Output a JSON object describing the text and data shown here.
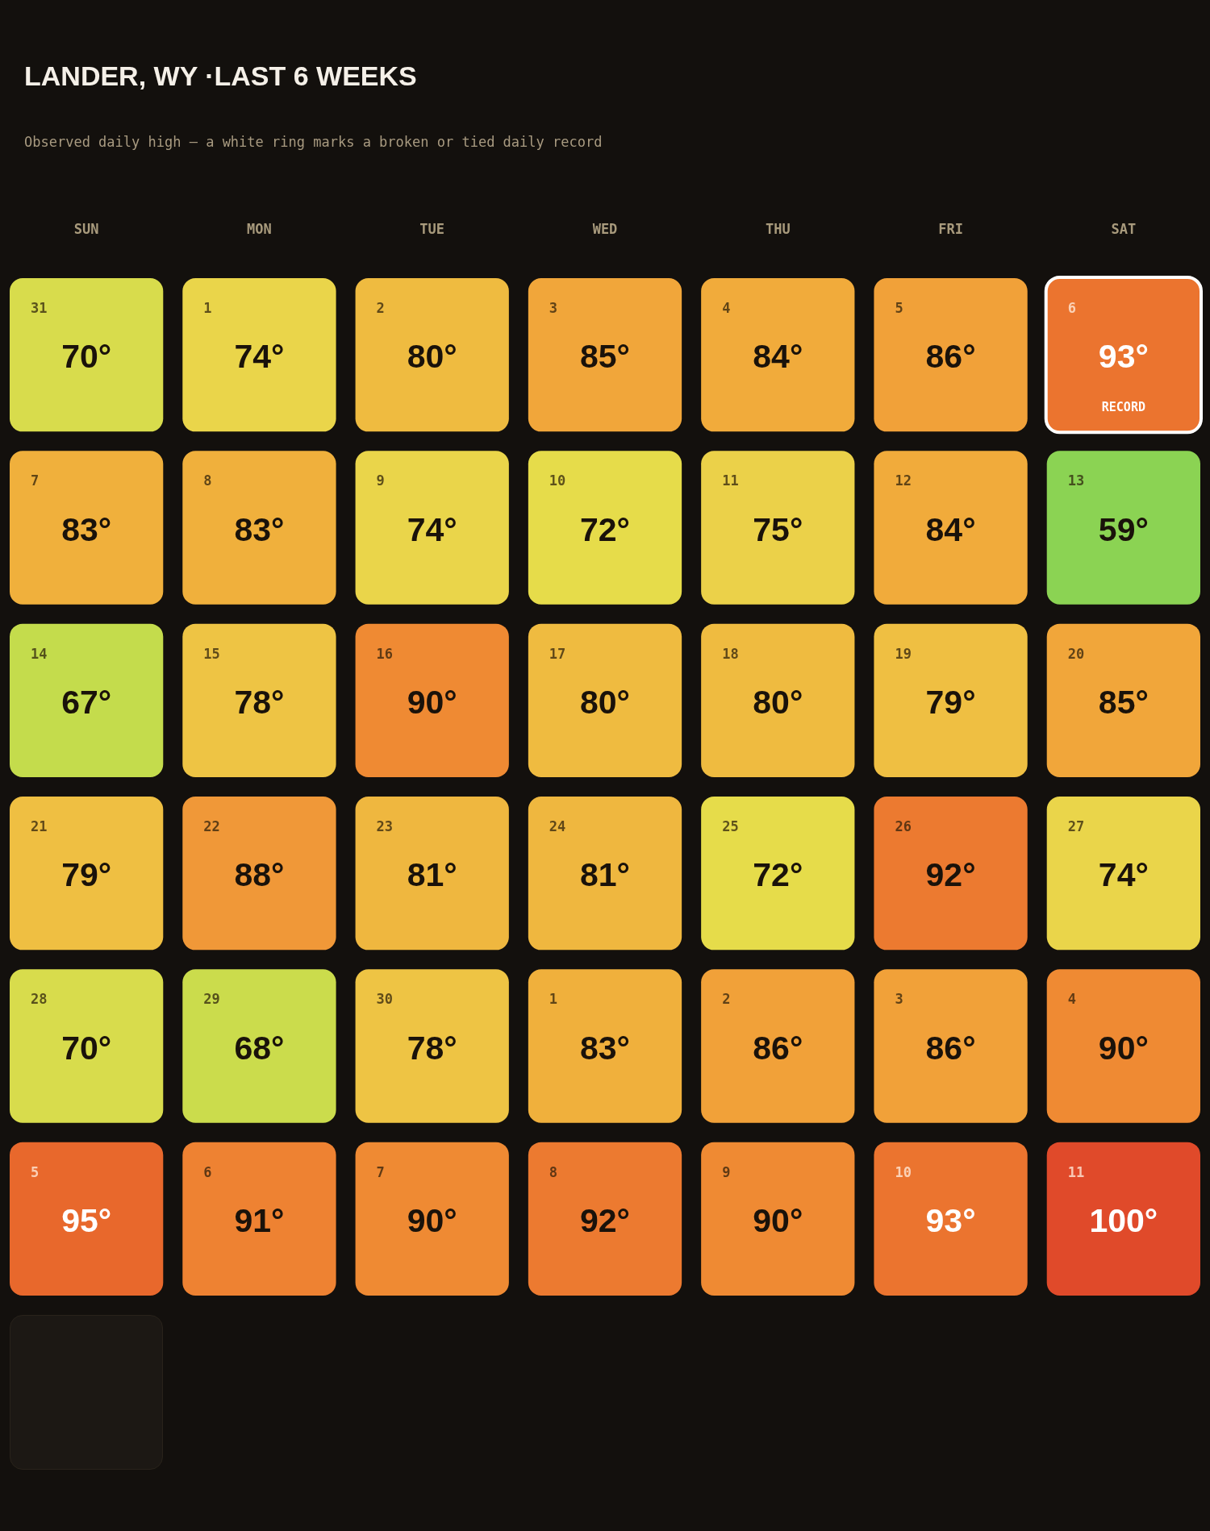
{
  "chart_data": {
    "type": "heatmap",
    "title": "LANDER, WY ·LAST 6 WEEKS",
    "subtitle": "Observed daily high — a white ring marks a broken or tied daily record",
    "categories": [
      "SUN",
      "MON",
      "TUE",
      "WED",
      "THU",
      "FRI",
      "SAT"
    ],
    "y_categories": [
      null,
      null,
      null,
      null,
      null,
      null
    ],
    "tick_labels": "x",
    "cells": [
      [
        70,
        74,
        80,
        85,
        84,
        86,
        93
      ],
      [
        83,
        83,
        74,
        72,
        75,
        84,
        59
      ],
      [
        67,
        78,
        90,
        80,
        80,
        79,
        85
      ],
      [
        79,
        88,
        81,
        81,
        72,
        92,
        74
      ],
      [
        70,
        68,
        78,
        83,
        86,
        86,
        90
      ],
      [
        95,
        91,
        90,
        92,
        90,
        93,
        100
      ]
    ],
    "cell_labels": [
      [
        "70°",
        "74°",
        "80°",
        "85°",
        "84°",
        "86°",
        "93°\nRECORD"
      ],
      [
        "83°",
        "83°",
        "74°",
        "72°",
        "75°",
        "84°",
        "59°"
      ],
      [
        "67°",
        "78°",
        "90°",
        "80°",
        "80°",
        "79°",
        "85°"
      ],
      [
        "79°",
        "88°",
        "81°",
        "81°",
        "72°",
        "92°",
        "74°"
      ],
      [
        "70°",
        "68°",
        "78°",
        "83°",
        "86°",
        "86°",
        "90°"
      ],
      [
        "95°",
        "91°",
        "90°",
        "92°",
        "90°",
        "93°",
        "100°"
      ]
    ],
    "annotations": [
      "31",
      "1",
      "2",
      "3",
      "4",
      "5",
      "6",
      "7",
      "8",
      "9",
      "10",
      "11",
      "12",
      "13",
      "14",
      "15",
      "16",
      "17",
      "18",
      "19",
      "20",
      "21",
      "22",
      "23",
      "24",
      "25",
      "26",
      "27",
      "28",
      "29",
      "30",
      "1",
      "2",
      "3",
      "4",
      "5",
      "6",
      "7",
      "8",
      "9",
      "10",
      "11"
    ]
  }
}
